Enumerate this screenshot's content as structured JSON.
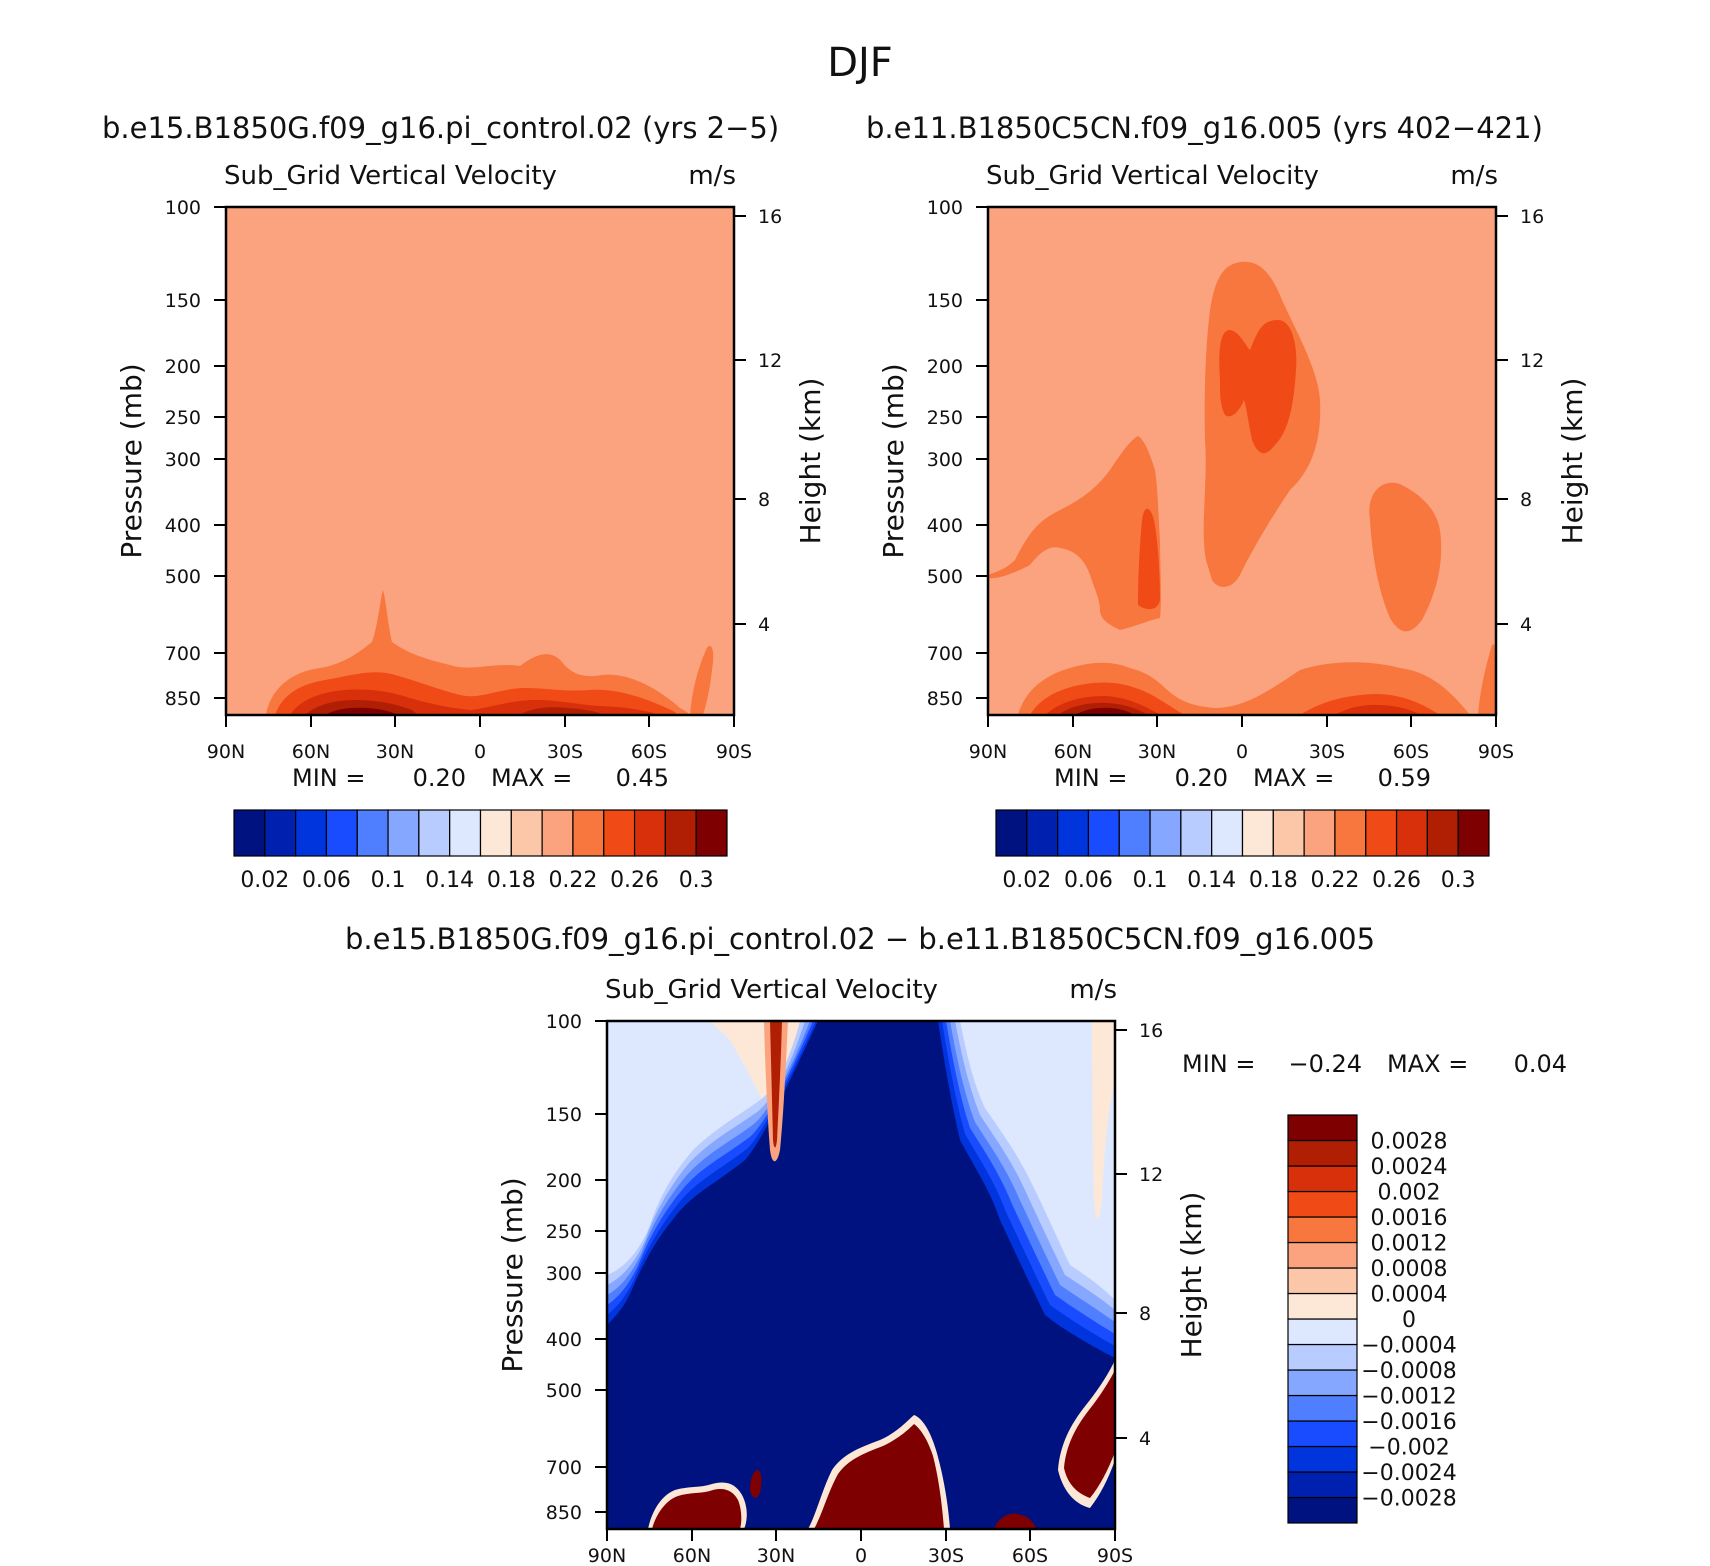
{
  "figure": {
    "season": "DJF",
    "case_a": "b.e15.B1850G.f09_g16.pi_control.02 (yrs 2−5)",
    "case_b": "b.e11.B1850C5CN.f09_g16.005 (yrs 402−421)",
    "diff_title": "b.e15.B1850G.f09_g16.pi_control.02 − b.e11.B1850C5CN.f09_g16.005",
    "variable": "Sub_Grid Vertical Velocity",
    "units": "m/s"
  },
  "chart_data": [
    {
      "id": "panel-a",
      "type": "heatmap",
      "subtype": "filled-contour latitude-pressure cross section",
      "title": "b.e15.B1850G.f09_g16.pi_control.02 (yrs 2−5)",
      "left_label": "Sub_Grid Vertical Velocity",
      "right_label": "m/s",
      "xlabel": "",
      "ylabel": "Pressure (mb)",
      "y2label": "Height (km)",
      "x_ticks": [
        "90N",
        "60N",
        "30N",
        "0",
        "30S",
        "60S",
        "90S"
      ],
      "y_ticks": [
        "100",
        "150",
        "200",
        "250",
        "300",
        "400",
        "500",
        "700",
        "850"
      ],
      "y2_ticks": [
        "16",
        "12",
        "8",
        "4"
      ],
      "xlim": [
        90,
        -90
      ],
      "ylim": [
        100,
        1000
      ],
      "min_label": "MIN =",
      "min": "0.20",
      "max_label": "MAX =",
      "max": "0.45",
      "colorbar": {
        "orientation": "horizontal",
        "labels": [
          "0.02",
          "0.06",
          "0.1",
          "0.14",
          "0.18",
          "0.22",
          "0.26",
          "0.3"
        ],
        "colors": [
          "#00127f",
          "#0021b0",
          "#0034dd",
          "#1a4cff",
          "#4f7eff",
          "#86a7ff",
          "#b8ccff",
          "#dde8ff",
          "#fde7d6",
          "#fcc6a9",
          "#fba37e",
          "#f8773f",
          "#f04a17",
          "#d8300a",
          "#b01f04",
          "#7f0000"
        ]
      },
      "field_summary": "Uniform ~0.20 above 700 mb; values rise to 0.30-0.45 near the surface around 40N and 20S-40S."
    },
    {
      "id": "panel-b",
      "type": "heatmap",
      "subtype": "filled-contour latitude-pressure cross section",
      "title": "b.e11.B1850C5CN.f09_g16.005 (yrs 402−421)",
      "left_label": "Sub_Grid Vertical Velocity",
      "right_label": "m/s",
      "xlabel": "",
      "ylabel": "Pressure (mb)",
      "y2label": "Height (km)",
      "x_ticks": [
        "90N",
        "60N",
        "30N",
        "0",
        "30S",
        "60S",
        "90S"
      ],
      "y_ticks": [
        "100",
        "150",
        "200",
        "250",
        "300",
        "400",
        "500",
        "700",
        "850"
      ],
      "y2_ticks": [
        "16",
        "12",
        "8",
        "4"
      ],
      "xlim": [
        90,
        -90
      ],
      "ylim": [
        100,
        1000
      ],
      "min_label": "MIN =",
      "min": "0.20",
      "max_label": "MAX =",
      "max": "0.59",
      "colorbar": {
        "orientation": "horizontal",
        "labels": [
          "0.02",
          "0.06",
          "0.1",
          "0.14",
          "0.18",
          "0.22",
          "0.26",
          "0.3"
        ],
        "colors": [
          "#00127f",
          "#0021b0",
          "#0034dd",
          "#1a4cff",
          "#4f7eff",
          "#86a7ff",
          "#b8ccff",
          "#dde8ff",
          "#fde7d6",
          "#fcc6a9",
          "#fba37e",
          "#f8773f",
          "#f04a17",
          "#d8300a",
          "#b01f04",
          "#7f0000"
        ]
      },
      "field_summary": "Background ~0.20; 0.22-0.26 plume over the equator from 150-500 mb, over 30N-90N mid troposphere and near 40S-60S at 400-600 mb; up to 0.59 near the surface around 40N."
    },
    {
      "id": "panel-diff",
      "type": "heatmap",
      "subtype": "filled-contour latitude-pressure cross section (difference)",
      "title": "b.e15.B1850G.f09_g16.pi_control.02 − b.e11.B1850C5CN.f09_g16.005",
      "left_label": "Sub_Grid Vertical Velocity",
      "right_label": "m/s",
      "xlabel": "",
      "ylabel": "Pressure (mb)",
      "y2label": "Height (km)",
      "x_ticks": [
        "90N",
        "60N",
        "30N",
        "0",
        "30S",
        "60S",
        "90S"
      ],
      "y_ticks": [
        "100",
        "150",
        "200",
        "250",
        "300",
        "400",
        "500",
        "700",
        "850"
      ],
      "y2_ticks": [
        "16",
        "12",
        "8",
        "4"
      ],
      "xlim": [
        90,
        -90
      ],
      "ylim": [
        100,
        1000
      ],
      "min_label": "MIN =",
      "min": "−0.24",
      "max_label": "MAX =",
      "max": "0.04",
      "colorbar": {
        "orientation": "vertical",
        "labels": [
          "0.0028",
          "0.0024",
          "0.002",
          "0.0016",
          "0.0012",
          "0.0008",
          "0.0004",
          "0",
          "−0.0004",
          "−0.0008",
          "−0.0012",
          "−0.0016",
          "−0.002",
          "−0.0024",
          "−0.0028"
        ],
        "colors": [
          "#00127f",
          "#0021b0",
          "#0034dd",
          "#1a4cff",
          "#4f7eff",
          "#86a7ff",
          "#b8ccff",
          "#dde8ff",
          "#fde7d6",
          "#fcc6a9",
          "#fba37e",
          "#f8773f",
          "#f04a17",
          "#d8300a",
          "#b01f04",
          "#7f0000"
        ]
      },
      "field_summary": "Strongly negative (below −0.0028) over most of the domain, slightly negative (−0.0004 to 0) in the high-latitude upper troposphere; positive above 0.0028 near the surface at 60N-40N and 0-20S, and in a thin column near 30N above 200 mb."
    }
  ]
}
